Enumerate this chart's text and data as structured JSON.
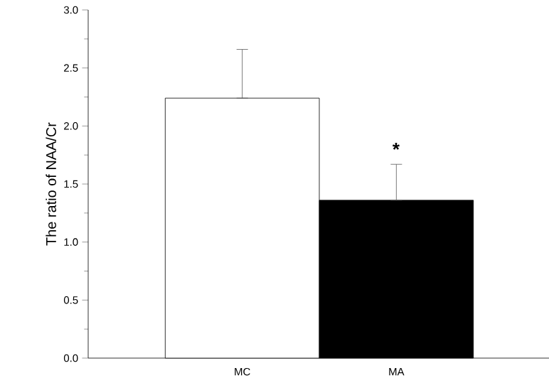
{
  "chart_data": {
    "type": "bar",
    "ylabel": "The ratio of NAA/Cr",
    "categories": [
      "MC",
      "MA"
    ],
    "values": [
      2.24,
      1.36
    ],
    "colors": [
      "#ffffff",
      "#000000"
    ],
    "errors": [
      [
        2.24,
        2.66
      ],
      [
        1.36,
        1.67
      ]
    ],
    "ylim": [
      0,
      3.0
    ],
    "yticks": [
      {
        "value": 0,
        "label": "0.0"
      },
      {
        "value": 0.5,
        "label": "0.5"
      },
      {
        "value": 1.0,
        "label": "1.0"
      },
      {
        "value": 1.5,
        "label": "1.5"
      },
      {
        "value": 2.0,
        "label": "2.0"
      },
      {
        "value": 2.5,
        "label": "2.5"
      },
      {
        "value": 3.0,
        "label": "3.0"
      }
    ],
    "annotations": [
      "*"
    ]
  }
}
